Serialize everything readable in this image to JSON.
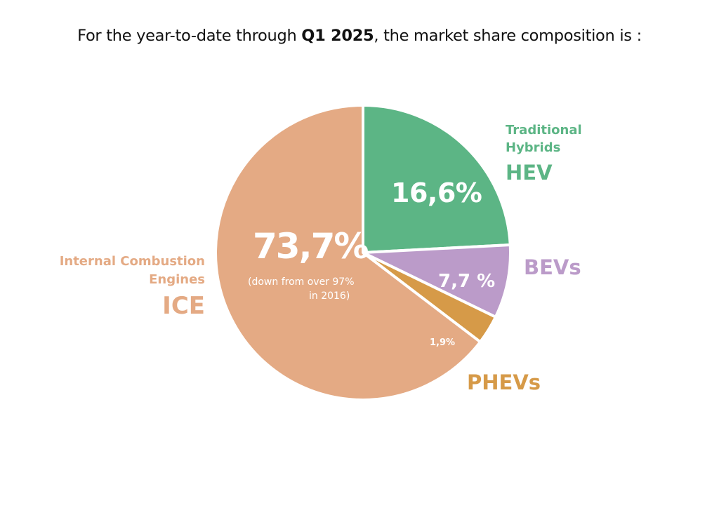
{
  "title": {
    "prefix": "For the year-to-date through ",
    "bold": "Q1 2025",
    "suffix": ", the market share composition is :"
  },
  "chart_data": {
    "type": "pie",
    "title": "For the year-to-date through Q1 2025, the market share composition is :",
    "slices": [
      {
        "key": "hev",
        "name": "Traditional Hybrids",
        "abbr": "HEV",
        "value": 16.6,
        "label": "16,6%",
        "color": "#5CB585"
      },
      {
        "key": "bev",
        "name": "",
        "abbr": "BEVs",
        "value": 7.7,
        "label": "7,7 %",
        "color": "#BB9BC9"
      },
      {
        "key": "phev",
        "name": "",
        "abbr": "PHEVs",
        "value": 1.9,
        "label": "1,9%",
        "color": "#D69A48"
      },
      {
        "key": "ice",
        "name": "Internal Combustion Engines",
        "abbr": "ICE",
        "value": 73.7,
        "label": "73,7%",
        "note": "(down from over 97% in 2016)",
        "color": "#E4AA84"
      }
    ]
  },
  "labels": {
    "hev_line1": "Traditional",
    "hev_line2": "Hybrids",
    "hev_abbr": "HEV",
    "bev_abbr": "BEVs",
    "phev_abbr": "PHEVs",
    "ice_line1": "Internal Combustion",
    "ice_line2": "Engines",
    "ice_abbr": "ICE",
    "ice_note_line1": "(down from over 97%",
    "ice_note_line2": "in 2016)"
  }
}
